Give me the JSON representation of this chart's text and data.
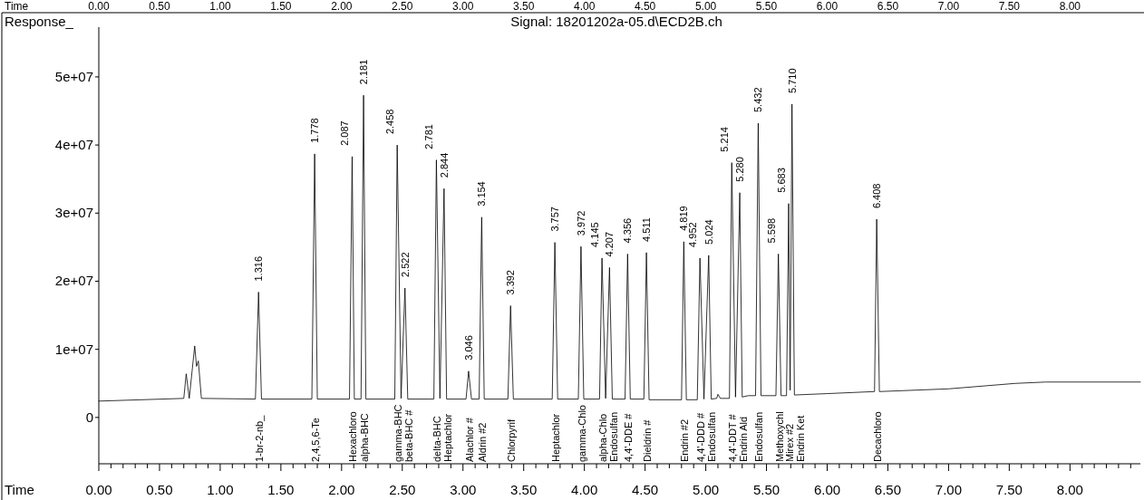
{
  "chart_data": {
    "type": "line",
    "title": "Signal: 18201202a-05.d\\ECD2B.ch",
    "ylabel": "Response_",
    "xlabel": "Time",
    "x2label": "Time",
    "color": "#000000",
    "marker": "none",
    "line_style": "solid",
    "grid": false,
    "x": [
      0,
      0.7,
      0.72,
      0.745,
      0.79,
      0.805,
      0.82,
      0.845,
      1.29,
      1.316,
      1.34,
      1.755,
      1.778,
      1.8,
      2.065,
      2.087,
      2.105,
      2.16,
      2.181,
      2.2,
      2.438,
      2.458,
      2.49,
      2.522,
      2.545,
      2.76,
      2.781,
      2.81,
      2.844,
      2.865,
      3.025,
      3.046,
      3.07,
      3.133,
      3.154,
      3.175,
      3.37,
      3.392,
      3.415,
      3.735,
      3.757,
      3.78,
      3.95,
      3.972,
      3.995,
      4.125,
      4.145,
      4.175,
      4.207,
      4.23,
      4.335,
      4.356,
      4.378,
      4.49,
      4.511,
      4.533,
      4.8,
      4.819,
      4.84,
      4.93,
      4.952,
      4.985,
      5.024,
      5.045,
      5.09,
      5.1,
      5.12,
      5.195,
      5.214,
      5.245,
      5.28,
      5.3,
      5.35,
      5.41,
      5.432,
      5.455,
      5.578,
      5.598,
      5.62,
      5.665,
      5.683,
      5.695,
      5.71,
      5.73,
      6.0,
      6.39,
      6.408,
      6.43,
      7.0,
      7.55,
      7.8,
      8.58
    ],
    "values": [
      2400000,
      2800000,
      6400000,
      2800000,
      10500000,
      7500000,
      8300000,
      2800000,
      2700000,
      18400000,
      2700000,
      2700000,
      38700000,
      2700000,
      2700000,
      38300000,
      2700000,
      2700000,
      47300000,
      2700000,
      2700000,
      40000000,
      2800000,
      19000000,
      2700000,
      2700000,
      37800000,
      2800000,
      33600000,
      2700000,
      2700000,
      6800000,
      2700000,
      2700000,
      29400000,
      2700000,
      2700000,
      16400000,
      2700000,
      2700000,
      25700000,
      2700000,
      2700000,
      25100000,
      2700000,
      2700000,
      23400000,
      2800000,
      22000000,
      2700000,
      2700000,
      24000000,
      2700000,
      2700000,
      24200000,
      2600000,
      2600000,
      25800000,
      2600000,
      2600000,
      23400000,
      2700000,
      23800000,
      2700000,
      2800000,
      3400000,
      2800000,
      2800000,
      37400000,
      3000000,
      33000000,
      3000000,
      3200000,
      3200000,
      43200000,
      3200000,
      3200000,
      24000000,
      3200000,
      3200000,
      31400000,
      4000000,
      46000000,
      3300000,
      3500000,
      3800000,
      29100000,
      3800000,
      4200000,
      5000000,
      5200000,
      5200000
    ],
    "xlim": [
      0,
      8.58
    ],
    "x2lim": [
      0,
      8.58
    ],
    "xticks": [
      {
        "value": 0,
        "label": "0.00"
      },
      {
        "value": 0.1,
        "label": null
      },
      {
        "value": 0.2,
        "label": null
      },
      {
        "value": 0.3,
        "label": null
      },
      {
        "value": 0.4,
        "label": null
      },
      {
        "value": 0.5,
        "label": "0.50"
      },
      {
        "value": 0.6,
        "label": null
      },
      {
        "value": 0.7,
        "label": null
      },
      {
        "value": 0.8,
        "label": null
      },
      {
        "value": 0.9,
        "label": null
      },
      {
        "value": 1,
        "label": "1.00"
      },
      {
        "value": 1.1,
        "label": null
      },
      {
        "value": 1.2,
        "label": null
      },
      {
        "value": 1.3,
        "label": null
      },
      {
        "value": 1.4,
        "label": null
      },
      {
        "value": 1.5,
        "label": "1.50"
      },
      {
        "value": 1.6,
        "label": null
      },
      {
        "value": 1.7,
        "label": null
      },
      {
        "value": 1.8,
        "label": null
      },
      {
        "value": 1.9,
        "label": null
      },
      {
        "value": 2,
        "label": "2.00"
      },
      {
        "value": 2.1,
        "label": null
      },
      {
        "value": 2.2,
        "label": null
      },
      {
        "value": 2.3,
        "label": null
      },
      {
        "value": 2.4,
        "label": null
      },
      {
        "value": 2.5,
        "label": "2.50"
      },
      {
        "value": 2.6,
        "label": null
      },
      {
        "value": 2.7,
        "label": null
      },
      {
        "value": 2.8,
        "label": null
      },
      {
        "value": 2.9,
        "label": null
      },
      {
        "value": 3,
        "label": "3.00"
      },
      {
        "value": 3.1,
        "label": null
      },
      {
        "value": 3.2,
        "label": null
      },
      {
        "value": 3.3,
        "label": null
      },
      {
        "value": 3.4,
        "label": null
      },
      {
        "value": 3.5,
        "label": "3.50"
      },
      {
        "value": 3.6,
        "label": null
      },
      {
        "value": 3.7,
        "label": null
      },
      {
        "value": 3.8,
        "label": null
      },
      {
        "value": 3.9,
        "label": null
      },
      {
        "value": 4,
        "label": "4.00"
      },
      {
        "value": 4.1,
        "label": null
      },
      {
        "value": 4.2,
        "label": null
      },
      {
        "value": 4.3,
        "label": null
      },
      {
        "value": 4.4,
        "label": null
      },
      {
        "value": 4.5,
        "label": "4.50"
      },
      {
        "value": 4.6,
        "label": null
      },
      {
        "value": 4.7,
        "label": null
      },
      {
        "value": 4.8,
        "label": null
      },
      {
        "value": 4.9,
        "label": null
      },
      {
        "value": 5,
        "label": "5.00"
      },
      {
        "value": 5.1,
        "label": null
      },
      {
        "value": 5.2,
        "label": null
      },
      {
        "value": 5.3,
        "label": null
      },
      {
        "value": 5.4,
        "label": null
      },
      {
        "value": 5.5,
        "label": "5.50"
      },
      {
        "value": 5.6,
        "label": null
      },
      {
        "value": 5.7,
        "label": null
      },
      {
        "value": 5.8,
        "label": null
      },
      {
        "value": 5.9,
        "label": null
      },
      {
        "value": 6,
        "label": "6.00"
      },
      {
        "value": 6.1,
        "label": null
      },
      {
        "value": 6.2,
        "label": null
      },
      {
        "value": 6.3,
        "label": null
      },
      {
        "value": 6.4,
        "label": null
      },
      {
        "value": 6.5,
        "label": "6.50"
      },
      {
        "value": 6.6,
        "label": null
      },
      {
        "value": 6.7,
        "label": null
      },
      {
        "value": 6.8,
        "label": null
      },
      {
        "value": 6.9,
        "label": null
      },
      {
        "value": 7,
        "label": "7.00"
      },
      {
        "value": 7.1,
        "label": null
      },
      {
        "value": 7.2,
        "label": null
      },
      {
        "value": 7.3,
        "label": null
      },
      {
        "value": 7.4,
        "label": null
      },
      {
        "value": 7.5,
        "label": "7.50"
      },
      {
        "value": 7.6,
        "label": null
      },
      {
        "value": 7.7,
        "label": null
      },
      {
        "value": 7.8,
        "label": null
      },
      {
        "value": 7.9,
        "label": null
      },
      {
        "value": 8,
        "label": "8.00"
      },
      {
        "value": 8.1,
        "label": null
      },
      {
        "value": 8.2,
        "label": null
      },
      {
        "value": 8.3,
        "label": null
      },
      {
        "value": 8.4,
        "label": null
      },
      {
        "value": 8.5,
        "label": null
      }
    ],
    "x2ticks": [
      {
        "value": 0,
        "label": "0.00"
      },
      {
        "value": 0.5,
        "label": "0.50"
      },
      {
        "value": 1,
        "label": "1.00"
      },
      {
        "value": 1.5,
        "label": "1.50"
      },
      {
        "value": 2,
        "label": "2.00"
      },
      {
        "value": 2.5,
        "label": "2.50"
      },
      {
        "value": 3,
        "label": "3.00"
      },
      {
        "value": 3.5,
        "label": "3.50"
      },
      {
        "value": 4,
        "label": "4.00"
      },
      {
        "value": 4.5,
        "label": "4.50"
      },
      {
        "value": 5,
        "label": "5.00"
      },
      {
        "value": 5.5,
        "label": "5.50"
      },
      {
        "value": 6,
        "label": "6.00"
      },
      {
        "value": 6.5,
        "label": "6.50"
      },
      {
        "value": 7,
        "label": "7.00"
      },
      {
        "value": 7.5,
        "label": "7.50"
      },
      {
        "value": 8,
        "label": "8.00"
      }
    ],
    "ylim": [
      -6800000,
      57300000
    ],
    "yticks": [
      0,
      {
        "value": 10000000,
        "label": "1e+07"
      },
      {
        "value": 20000000,
        "label": "2e+07"
      },
      {
        "value": 30000000,
        "label": "3e+07"
      },
      {
        "value": 40000000,
        "label": "4e+07"
      },
      {
        "value": 50000000,
        "label": "5e+07"
      }
    ],
    "annotations": [
      {
        "text": "1.316",
        "x": 1.316,
        "y": 18400000
      },
      {
        "text": "1.778",
        "x": 1.778,
        "y": 38700000
      },
      {
        "text": "2.087",
        "x": 2.087,
        "y": 38300000
      },
      {
        "text": "2.181",
        "x": 2.181,
        "y": 47300000
      },
      {
        "text": "2.458",
        "x": 2.458,
        "y": 40000000
      },
      {
        "text": "2.522",
        "x": 2.522,
        "y": 19000000
      },
      {
        "text": "2.781",
        "x": 2.781,
        "y": 37800000
      },
      {
        "text": "2.844",
        "x": 2.844,
        "y": 33600000
      },
      {
        "text": "3.046",
        "x": 3.046,
        "y": 6800000
      },
      {
        "text": "3.154",
        "x": 3.154,
        "y": 29400000
      },
      {
        "text": "3.392",
        "x": 3.392,
        "y": 16400000
      },
      {
        "text": "3.757",
        "x": 3.757,
        "y": 25700000
      },
      {
        "text": "3.972",
        "x": 3.972,
        "y": 25100000
      },
      {
        "text": "4.145",
        "x": 4.145,
        "y": 23400000
      },
      {
        "text": "4.207",
        "x": 4.207,
        "y": 22000000
      },
      {
        "text": "4.356",
        "x": 4.356,
        "y": 24000000
      },
      {
        "text": "4.511",
        "x": 4.511,
        "y": 24200000
      },
      {
        "text": "4.819",
        "x": 4.819,
        "y": 25800000
      },
      {
        "text": "4.952",
        "x": 4.952,
        "y": 23400000
      },
      {
        "text": "5.024",
        "x": 5.024,
        "y": 23800000
      },
      {
        "text": "5.214",
        "x": 5.214,
        "y": 37400000
      },
      {
        "text": "5.280",
        "x": 5.28,
        "y": 33000000
      },
      {
        "text": "5.432",
        "x": 5.432,
        "y": 43200000
      },
      {
        "text": "5.598",
        "x": 5.598,
        "y": 24000000
      },
      {
        "text": "5.683",
        "x": 5.683,
        "y": 31400000
      },
      {
        "text": "5.710",
        "x": 5.71,
        "y": 46000000
      },
      {
        "text": "6.408",
        "x": 6.408,
        "y": 29100000
      },
      "1-br-2-nb_",
      "2,4,5,6-Te",
      "Hexachloro",
      "alpha-BHC",
      "gamma-BHC",
      "beta-BHC #",
      "delta-BHC",
      "Heptachlor",
      "Alachlor #",
      "Aldrin #2",
      "Chlorpyrif",
      "Heptachlor",
      "gamma-Chlo",
      "alpha-Chlo",
      "Endosulfan",
      "4,4'-DDE #",
      "Dieldrin #",
      "Endrin #2",
      "4,4'-DDD #",
      "Endosulfan",
      "4,4'-DDT #",
      "Endrin Ald",
      "Endosulfan",
      "Methoxychl",
      "Mirex #2",
      "Endrin Ket",
      "Decachloro"
    ]
  }
}
